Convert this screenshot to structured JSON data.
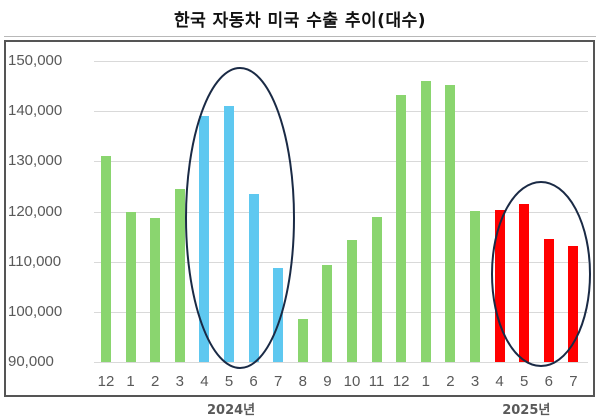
{
  "title": "한국 자동차 미국 수출 추이(대수)",
  "colors": {
    "default": "#8ad56f",
    "highlight_2024": "#5ec8f0",
    "highlight_2025": "#ff0000",
    "ellipse": "#1a2a45"
  },
  "chart_data": {
    "type": "bar",
    "title": "한국 자동차 미국 수출 추이(대수)",
    "xlabel": "",
    "ylabel": "",
    "ylim": [
      90000,
      150000
    ],
    "yticks": [
      "150,000",
      "140,000",
      "130,000",
      "120,000",
      "110,000",
      "100,000",
      "90,000"
    ],
    "grid": true,
    "legend": "none",
    "categories": [
      "12",
      "1",
      "2",
      "3",
      "4",
      "5",
      "6",
      "7",
      "8",
      "9",
      "10",
      "11",
      "12",
      "1",
      "2",
      "3",
      "4",
      "5",
      "6",
      "7"
    ],
    "year_labels": [
      {
        "label": "2024년",
        "under_index": 5
      },
      {
        "label": "2025년",
        "under_index": 17
      }
    ],
    "values": [
      131000,
      120000,
      118700,
      124500,
      139000,
      141000,
      123500,
      108800,
      98600,
      109300,
      114300,
      118900,
      143300,
      146000,
      145300,
      120100,
      120200,
      121500,
      114600,
      113100
    ],
    "bar_colors": [
      "default",
      "default",
      "default",
      "default",
      "highlight_2024",
      "highlight_2024",
      "highlight_2024",
      "highlight_2024",
      "default",
      "default",
      "default",
      "default",
      "default",
      "default",
      "default",
      "default",
      "highlight_2025",
      "highlight_2025",
      "highlight_2025",
      "highlight_2025"
    ],
    "annotations": [
      {
        "type": "ellipse",
        "around": "2024 Apr–Jul"
      },
      {
        "type": "ellipse",
        "around": "2025 Apr–Jul"
      }
    ]
  }
}
